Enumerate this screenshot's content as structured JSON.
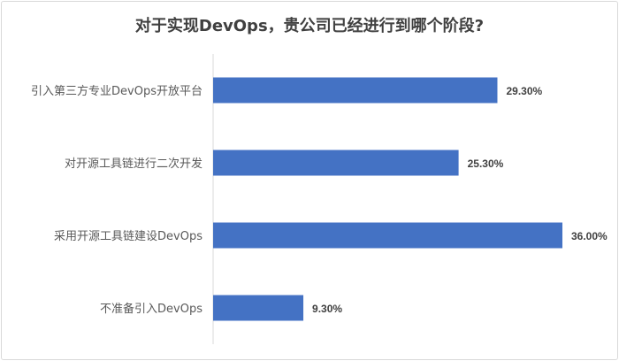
{
  "chart_data": {
    "type": "bar",
    "orientation": "horizontal",
    "title": "对于实现DevOps，贵公司已经进行到哪个阶段?",
    "categories": [
      "引入第三方专业DevOps开放平台",
      "对开源工具链进行二次开发",
      "采用开源工具链建设DevOps",
      "不准备引入DevOps"
    ],
    "values": [
      29.3,
      25.3,
      36.0,
      9.3
    ],
    "data_labels": [
      "29.30%",
      "25.30%",
      "36.00%",
      "9.30%"
    ],
    "xlabel": "",
    "ylabel": "",
    "xlim": [
      0,
      36
    ],
    "grid": false,
    "bar_color": "#4472c4"
  }
}
